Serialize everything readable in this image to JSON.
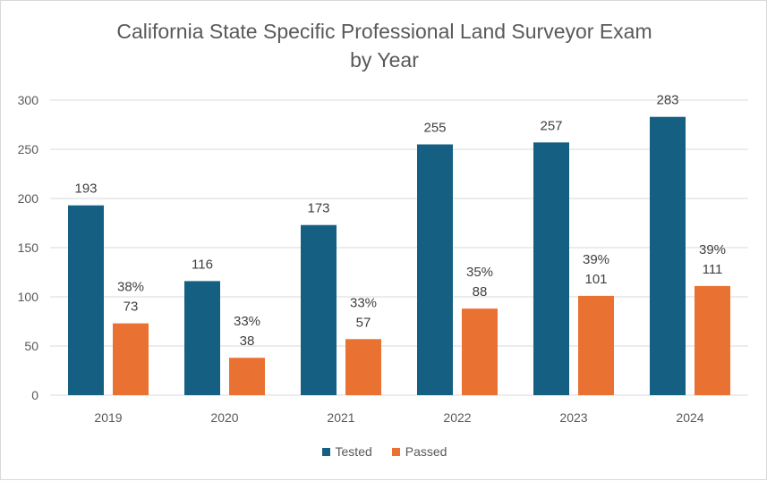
{
  "chart_data": {
    "type": "bar",
    "title_line1": "California State Specific Professional Land Surveyor Exam",
    "title_line2": "by Year",
    "xlabel": "",
    "ylabel": "",
    "categories": [
      "2019",
      "2020",
      "2021",
      "2022",
      "2023",
      "2024"
    ],
    "ylim": [
      0,
      300
    ],
    "yticks": [
      0,
      50,
      100,
      150,
      200,
      250,
      300
    ],
    "grid": true,
    "legend_position": "bottom",
    "series": [
      {
        "name": "Tested",
        "color": "#156082",
        "values": [
          193,
          116,
          173,
          255,
          257,
          283
        ]
      },
      {
        "name": "Passed",
        "color": "#E97132",
        "values": [
          73,
          38,
          57,
          88,
          101,
          111
        ],
        "percent_labels": [
          "38%",
          "33%",
          "33%",
          "35%",
          "39%",
          "39%"
        ]
      }
    ]
  },
  "colors": {
    "text": "#595959",
    "grid": "#d9d9d9",
    "label": "#404040"
  }
}
